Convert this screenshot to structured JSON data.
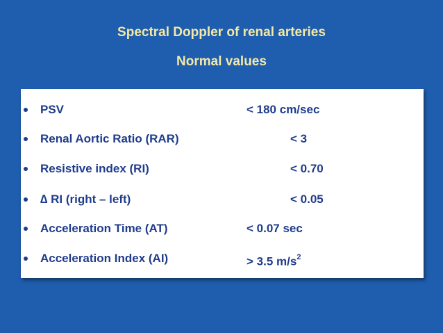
{
  "header": {
    "title": "Spectral Doppler of renal arteries",
    "subtitle": "Normal values"
  },
  "items": [
    {
      "label": "PSV",
      "value": "< 180 cm/sec"
    },
    {
      "label": "Renal Aortic Ratio (RAR)",
      "value": "< 3"
    },
    {
      "label": "Resistive index (RI)",
      "value": "< 0.70"
    },
    {
      "label": "∆ RI (right – left)",
      "value": "< 0.05"
    },
    {
      "label": "Acceleration Time (AT)",
      "value": "< 0.07 sec"
    },
    {
      "label": "Acceleration Index (AI)",
      "value": "> 3.5 m/s",
      "value_sup": "2"
    }
  ]
}
